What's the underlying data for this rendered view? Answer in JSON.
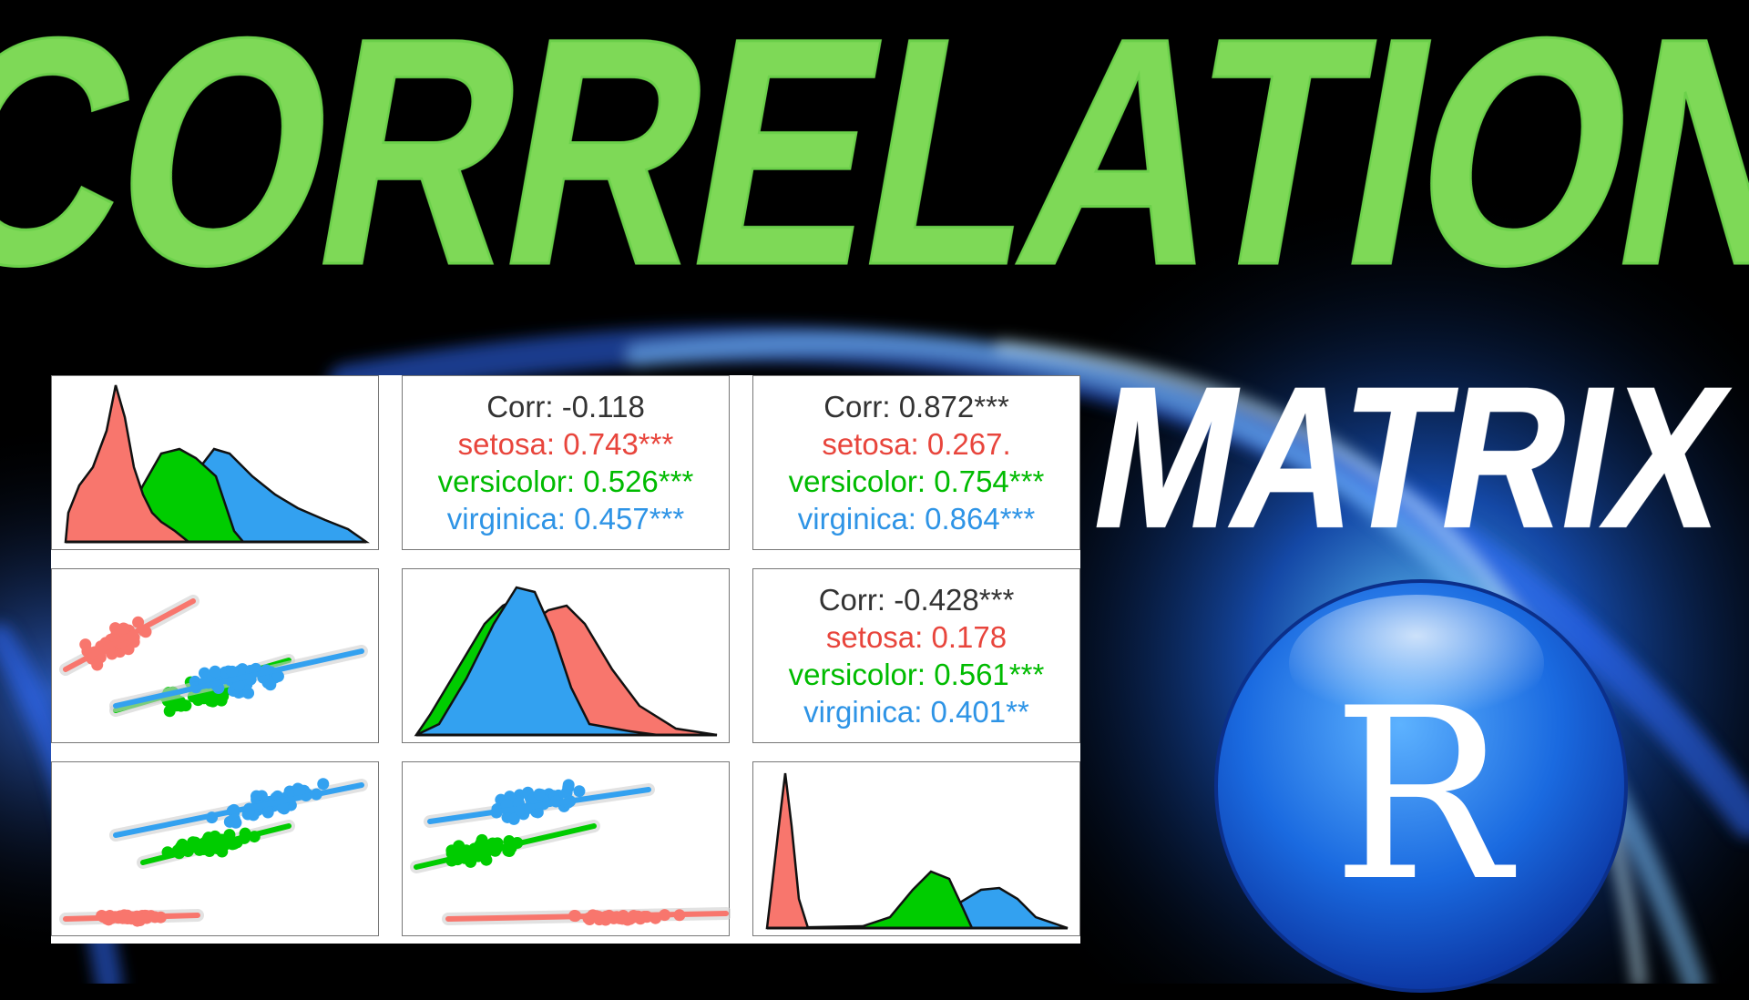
{
  "title": "CORRELATION",
  "subtitle": "MATRIX",
  "logo_letter": "R",
  "colors": {
    "title": "#7ed957",
    "subtitle": "#ffffff",
    "setosa": "#f8766d",
    "versicolor": "#00cc00",
    "virginica": "#33a1f0",
    "corr_text": "#333333",
    "logo_ball": "#1a6ae0"
  },
  "chart_data": {
    "type": "scatter",
    "kind": "pairs-matrix",
    "grid": "3x3",
    "groups": [
      "setosa",
      "versicolor",
      "virginica"
    ],
    "correlations": [
      {
        "overall": "Corr: -0.118",
        "setosa": "setosa: 0.743***",
        "versicolor": "versicolor: 0.526***",
        "virginica": "virginica: 0.457***"
      },
      {
        "overall": "Corr: 0.872***",
        "setosa": "setosa: 0.267.",
        "versicolor": "versicolor: 0.754***",
        "virginica": "virginica: 0.864***"
      },
      {
        "overall": "Corr: -0.428***",
        "setosa": "setosa: 0.178",
        "versicolor": "versicolor: 0.561***",
        "virginica": "virginica: 0.401**"
      }
    ]
  }
}
